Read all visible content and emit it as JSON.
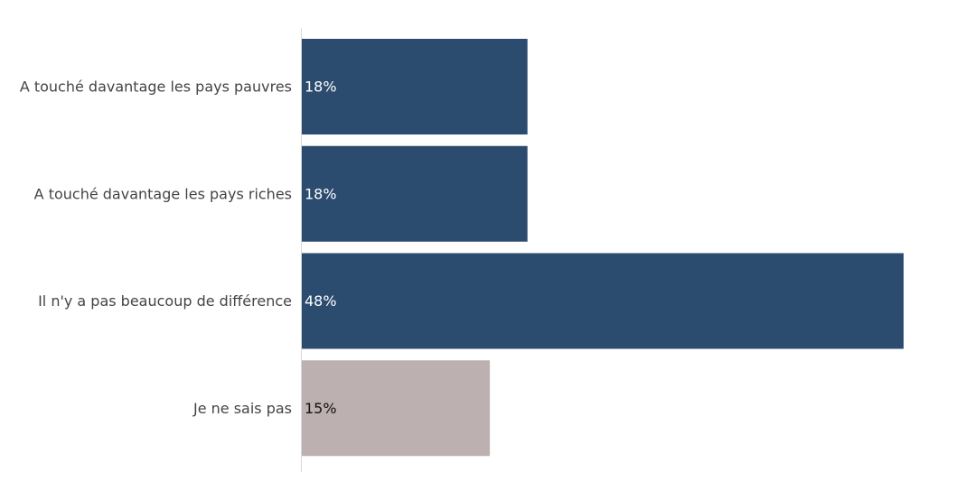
{
  "chart_data": {
    "type": "bar",
    "orientation": "horizontal",
    "categories": [
      "A touché davantage les pays pauvres",
      "A touché davantage les pays riches",
      "Il n'y a pas beaucoup de différence",
      "Je ne sais pas"
    ],
    "values": [
      18,
      18,
      48,
      15
    ],
    "value_labels": [
      "18%",
      "18%",
      "48%",
      "15%"
    ],
    "bar_colors": [
      "#2b4b6f",
      "#2b4b6f",
      "#2b4b6f",
      "#bdb0b0"
    ],
    "value_label_colors": [
      "#ffffff",
      "#ffffff",
      "#ffffff",
      "#111111"
    ],
    "axis_line_color": "#d9d9d9",
    "xlim": [
      0,
      48
    ],
    "title": "",
    "xlabel": "",
    "ylabel": "",
    "grid": false,
    "legend": "none"
  }
}
